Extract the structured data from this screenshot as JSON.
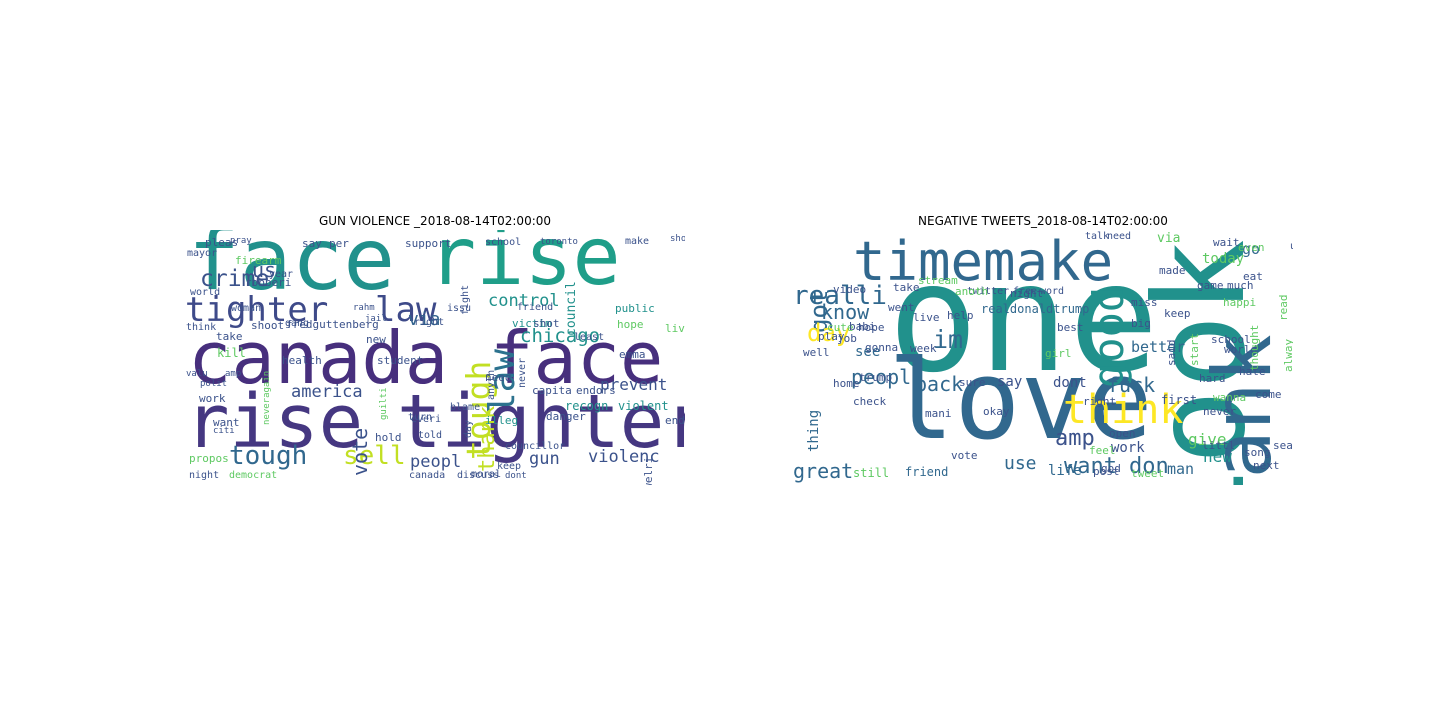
{
  "figure": {
    "left": {
      "title": "GUN VIOLENCE _2018-08-14T02:00:00",
      "words": [
        {
          "t": "face",
          "c": "#21918c"
        },
        {
          "t": "rise",
          "c": "#1f9e89"
        },
        {
          "t": "canada",
          "c": "#472f7d"
        },
        {
          "t": "face",
          "c": "#472f7d"
        },
        {
          "t": "rise",
          "c": "#453781"
        },
        {
          "t": "tighter",
          "c": "#453781"
        },
        {
          "t": "tighter",
          "c": "#3e4a89"
        },
        {
          "t": "law",
          "c": "#3e4a89"
        },
        {
          "t": "crime",
          "c": "#3b528b"
        },
        {
          "t": "us",
          "c": "#3b528b"
        },
        {
          "t": "tough",
          "c": "#31688e"
        },
        {
          "t": "sell",
          "c": "#c2df23"
        },
        {
          "t": "tough",
          "c": "#c2df23"
        },
        {
          "t": "law",
          "c": "#2c728e"
        },
        {
          "t": "via",
          "c": "#33638d"
        },
        {
          "t": "chicago",
          "c": "#21918c"
        },
        {
          "t": "control",
          "c": "#21918c"
        },
        {
          "t": "america",
          "c": "#3b528b"
        },
        {
          "t": "prevent",
          "c": "#3b528b"
        },
        {
          "t": "vote",
          "c": "#3b528b"
        },
        {
          "t": "gun",
          "c": "#3b528b"
        },
        {
          "t": "violenc",
          "c": "#3b528b"
        },
        {
          "t": "peopl",
          "c": "#3b528b"
        },
        {
          "t": "thank",
          "c": "#c2df23"
        },
        {
          "t": "firearm",
          "c": "#5ec962"
        },
        {
          "t": "pleas",
          "c": "#3b528b"
        },
        {
          "t": "pray",
          "c": "#3b528b"
        },
        {
          "t": "mayor",
          "c": "#3b528b"
        },
        {
          "t": "robberi",
          "c": "#3b528b"
        },
        {
          "t": "fredguttenberg",
          "c": "#3b528b"
        },
        {
          "t": "support",
          "c": "#3b528b"
        },
        {
          "t": "school",
          "c": "#3b528b"
        },
        {
          "t": "council",
          "c": "#21918c"
        },
        {
          "t": "toronto",
          "c": "#3b528b"
        },
        {
          "t": "make",
          "c": "#3b528b"
        },
        {
          "t": "public",
          "c": "#21918c"
        },
        {
          "t": "victim",
          "c": "#21918c"
        },
        {
          "t": "friend",
          "c": "#3b528b"
        },
        {
          "t": "shot",
          "c": "#3b528b"
        },
        {
          "t": "hope",
          "c": "#5ec962"
        },
        {
          "t": "live",
          "c": "#5ec962"
        },
        {
          "t": "kill",
          "c": "#5ec962"
        },
        {
          "t": "take",
          "c": "#3b528b"
        },
        {
          "t": "shoot",
          "c": "#3b528b"
        },
        {
          "t": "gang",
          "c": "#3b528b"
        },
        {
          "t": "right",
          "c": "#3b528b"
        },
        {
          "t": "health",
          "c": "#3b528b"
        },
        {
          "t": "student",
          "c": "#3b528b"
        },
        {
          "t": "capita",
          "c": "#3b528b"
        },
        {
          "t": "endors",
          "c": "#3b528b"
        },
        {
          "t": "end",
          "c": "#3b528b"
        },
        {
          "t": "emma",
          "c": "#3b528b"
        },
        {
          "t": "recogn",
          "c": "#21918c"
        },
        {
          "t": "violent",
          "c": "#21918c"
        },
        {
          "t": "jewelri",
          "c": "#3b528b"
        },
        {
          "t": "danger",
          "c": "#3b528b"
        },
        {
          "t": "work",
          "c": "#3b528b"
        },
        {
          "t": "want",
          "c": "#3b528b"
        },
        {
          "t": "hold",
          "c": "#3b528b"
        },
        {
          "t": "propos",
          "c": "#5ec962"
        },
        {
          "t": "night",
          "c": "#3b528b"
        },
        {
          "t": "democrat",
          "c": "#5ec962"
        },
        {
          "t": "canada",
          "c": "#3b528b"
        },
        {
          "t": "discuss",
          "c": "#3b528b"
        },
        {
          "t": "turn",
          "c": "#3b528b"
        },
        {
          "t": "told",
          "c": "#3b528b"
        },
        {
          "t": "moral",
          "c": "#3b528b"
        },
        {
          "t": "keep",
          "c": "#3b528b"
        },
        {
          "t": "dont",
          "c": "#3b528b"
        },
        {
          "t": "think",
          "c": "#3b528b"
        },
        {
          "t": "world",
          "c": "#3b528b"
        },
        {
          "t": "woman",
          "c": "#3b528b"
        },
        {
          "t": "year",
          "c": "#3b528b"
        },
        {
          "t": "illeg",
          "c": "#21918c"
        },
        {
          "t": "blame",
          "c": "#3b528b"
        },
        {
          "t": "need",
          "c": "#3b528b"
        },
        {
          "t": "citi",
          "c": "#3b528b"
        },
        {
          "t": "polit",
          "c": "#3b528b"
        },
        {
          "t": "valu",
          "c": "#3b528b"
        },
        {
          "t": "amp",
          "c": "#3b528b"
        },
        {
          "t": "councillor",
          "c": "#3b528b"
        },
        {
          "t": "everi",
          "c": "#3b528b"
        },
        {
          "t": "say",
          "c": "#3b528b"
        },
        {
          "t": "per",
          "c": "#3b528b"
        },
        {
          "t": "new",
          "c": "#3b528b"
        },
        {
          "t": "issu",
          "c": "#3b528b"
        },
        {
          "t": "least",
          "c": "#3b528b"
        },
        {
          "t": "day",
          "c": "#3b528b"
        },
        {
          "t": "anyth",
          "c": "#3b528b"
        },
        {
          "t": "never",
          "c": "#3b528b"
        },
        {
          "t": "fight",
          "c": "#3b528b"
        },
        {
          "t": "show",
          "c": "#3b528b"
        },
        {
          "t": "neveragain",
          "c": "#5ec962"
        },
        {
          "t": "guilti",
          "c": "#5ec962"
        },
        {
          "t": "jail",
          "c": "#3b528b"
        },
        {
          "t": "rahm",
          "c": "#3b528b"
        }
      ]
    },
    "right": {
      "title": "NEGATIVE TWEETS_2018-08-14T02:00:00",
      "words": [
        {
          "t": "one",
          "c": "#21918c"
        },
        {
          "t": "love",
          "c": "#31688e"
        },
        {
          "t": "look",
          "c": "#21918c"
        },
        {
          "t": "thank",
          "c": "#31688e"
        },
        {
          "t": "timemake",
          "c": "#31688e"
        },
        {
          "t": "think",
          "c": "#fde725"
        },
        {
          "t": "im",
          "c": "#31688e"
        },
        {
          "t": "good",
          "c": "#21918c"
        },
        {
          "t": "realli",
          "c": "#31688e"
        },
        {
          "t": "got",
          "c": "#31688e"
        },
        {
          "t": "know",
          "c": "#31688e"
        },
        {
          "t": "day",
          "c": "#fde725"
        },
        {
          "t": "peopl",
          "c": "#31688e"
        },
        {
          "t": "back",
          "c": "#31688e"
        },
        {
          "t": "say",
          "c": "#3b528b"
        },
        {
          "t": "amp",
          "c": "#3b528b"
        },
        {
          "t": "want",
          "c": "#31688e"
        },
        {
          "t": "don",
          "c": "#31688e"
        },
        {
          "t": "fuck",
          "c": "#31688e"
        },
        {
          "t": "dont",
          "c": "#3b528b"
        },
        {
          "t": "work",
          "c": "#3b528b"
        },
        {
          "t": "use",
          "c": "#31688e"
        },
        {
          "t": "life",
          "c": "#31688e"
        },
        {
          "t": "man",
          "c": "#31688e"
        },
        {
          "t": "new",
          "c": "#21918c"
        },
        {
          "t": "give",
          "c": "#5ec962"
        },
        {
          "t": "better",
          "c": "#31688e"
        },
        {
          "t": "today",
          "c": "#5ec962"
        },
        {
          "t": "go",
          "c": "#31688e"
        },
        {
          "t": "great",
          "c": "#31688e"
        },
        {
          "t": "still",
          "c": "#5ec962"
        },
        {
          "t": "friend",
          "c": "#31688e"
        },
        {
          "t": "thing",
          "c": "#31688e"
        },
        {
          "t": "see",
          "c": "#31688e"
        },
        {
          "t": "realdonaldtrump",
          "c": "#31688e"
        },
        {
          "t": "twitter",
          "c": "#3b528b"
        },
        {
          "t": "free",
          "c": "#3b528b"
        },
        {
          "t": "word",
          "c": "#3b528b"
        },
        {
          "t": "talk",
          "c": "#3b528b"
        },
        {
          "t": "need",
          "c": "#3b528b"
        },
        {
          "t": "via",
          "c": "#5ec962"
        },
        {
          "t": "wait",
          "c": "#3b528b"
        },
        {
          "t": "us",
          "c": "#3b528b"
        },
        {
          "t": "big",
          "c": "#3b528b"
        },
        {
          "t": "first",
          "c": "#3b528b"
        },
        {
          "t": "happi",
          "c": "#5ec962"
        },
        {
          "t": "much",
          "c": "#3b528b"
        },
        {
          "t": "game",
          "c": "#3b528b"
        },
        {
          "t": "miss",
          "c": "#3b528b"
        },
        {
          "t": "keep",
          "c": "#3b528b"
        },
        {
          "t": "girl",
          "c": "#5ec962"
        },
        {
          "t": "hope",
          "c": "#3b528b"
        },
        {
          "t": "went",
          "c": "#3b528b"
        },
        {
          "t": "cute",
          "c": "#5ec962"
        },
        {
          "t": "video",
          "c": "#3b528b"
        },
        {
          "t": "take",
          "c": "#3b528b"
        },
        {
          "t": "babi",
          "c": "#3b528b"
        },
        {
          "t": "trump",
          "c": "#3b528b"
        },
        {
          "t": "play",
          "c": "#3b528b"
        },
        {
          "t": "job",
          "c": "#3b528b"
        },
        {
          "t": "gonna",
          "c": "#3b528b"
        },
        {
          "t": "well",
          "c": "#3b528b"
        },
        {
          "t": "live",
          "c": "#3b528b"
        },
        {
          "t": "week",
          "c": "#3b528b"
        },
        {
          "t": "world",
          "c": "#3b528b"
        },
        {
          "t": "hard",
          "c": "#3b528b"
        },
        {
          "t": "hate",
          "c": "#3b528b"
        },
        {
          "t": "school",
          "c": "#3b528b"
        },
        {
          "t": "song",
          "c": "#3b528b"
        },
        {
          "t": "season",
          "c": "#3b528b"
        },
        {
          "t": "come",
          "c": "#3b528b"
        },
        {
          "t": "never",
          "c": "#3b528b"
        },
        {
          "t": "tweet",
          "c": "#5ec962"
        },
        {
          "t": "post",
          "c": "#3b528b"
        },
        {
          "t": "feel",
          "c": "#5ec962"
        },
        {
          "t": "god",
          "c": "#3b528b"
        },
        {
          "t": "home",
          "c": "#3b528b"
        },
        {
          "t": "check",
          "c": "#3b528b"
        },
        {
          "t": "okay",
          "c": "#3b528b"
        },
        {
          "t": "vote",
          "c": "#3b528b"
        },
        {
          "t": "best",
          "c": "#3b528b"
        },
        {
          "t": "night",
          "c": "#3b528b"
        },
        {
          "t": "help",
          "c": "#3b528b"
        },
        {
          "t": "open",
          "c": "#3b528b"
        },
        {
          "t": "right",
          "c": "#3b528b"
        },
        {
          "t": "sure",
          "c": "#3b528b"
        },
        {
          "t": "mani",
          "c": "#3b528b"
        },
        {
          "t": "eat",
          "c": "#3b528b"
        },
        {
          "t": "even",
          "c": "#5ec962"
        },
        {
          "t": "made",
          "c": "#3b528b"
        },
        {
          "t": "said",
          "c": "#3b528b"
        },
        {
          "t": "start",
          "c": "#5ec962"
        },
        {
          "t": "read",
          "c": "#5ec962"
        },
        {
          "t": "alway",
          "c": "#5ec962"
        },
        {
          "t": "thought",
          "c": "#5ec962"
        },
        {
          "t": "anoth",
          "c": "#5ec962"
        },
        {
          "t": "stream",
          "c": "#5ec962"
        },
        {
          "t": "wanna",
          "c": "#5ec962"
        },
        {
          "t": "next",
          "c": "#3b528b"
        },
        {
          "t": "littl",
          "c": "#3b528b"
        }
      ]
    }
  }
}
